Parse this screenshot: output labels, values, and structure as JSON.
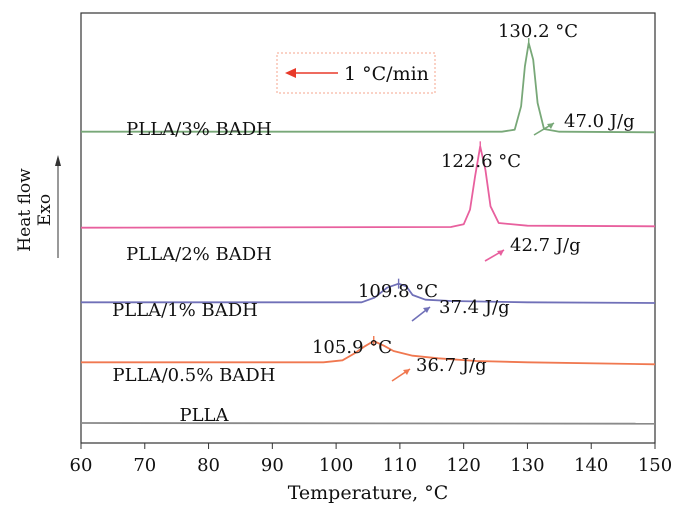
{
  "chart_data": {
    "type": "line",
    "xlabel": "Temperature, °C",
    "ylabel": "Heat flow",
    "ylabel_direction": "Exo",
    "xlim": [
      60,
      150
    ],
    "x_ticks": [
      "60",
      "70",
      "80",
      "90",
      "100",
      "110",
      "120",
      "130",
      "140",
      "150"
    ],
    "y_ticks_shown": false,
    "grid": false,
    "legend": null,
    "annotation_box": {
      "text": "1 °C/min",
      "arrow_direction": "left"
    },
    "series": [
      {
        "name": "PLLA",
        "color": "#8a8a8a",
        "baseline": 0.5,
        "peak": null,
        "points": [
          [
            60,
            0.5
          ],
          [
            150,
            0.4
          ]
        ]
      },
      {
        "name": "PLLA/0.5% BADH",
        "color": "#f07850",
        "baseline": 9.5,
        "peak": {
          "x": 105.9,
          "label": "105.9 °C",
          "enthalpy": "36.7 J/g"
        },
        "points": [
          [
            60,
            9.6
          ],
          [
            98,
            9.6
          ],
          [
            101,
            9.9
          ],
          [
            103,
            11.0
          ],
          [
            104.5,
            12.0
          ],
          [
            105.9,
            12.8
          ],
          [
            107.5,
            12.1
          ],
          [
            109,
            11.3
          ],
          [
            112,
            10.6
          ],
          [
            116,
            10.2
          ],
          [
            122,
            9.8
          ],
          [
            130,
            9.6
          ],
          [
            150,
            9.3
          ]
        ]
      },
      {
        "name": "PLLA/1% BADH",
        "color": "#7070b8",
        "baseline": 18.5,
        "peak": {
          "x": 109.8,
          "label": "109.8 °C",
          "enthalpy": "37.4 J/g"
        },
        "points": [
          [
            60,
            18.6
          ],
          [
            104,
            18.6
          ],
          [
            106,
            19.3
          ],
          [
            108,
            20.8
          ],
          [
            109.8,
            21.4
          ],
          [
            111,
            21.0
          ],
          [
            112,
            19.7
          ],
          [
            114,
            19.0
          ],
          [
            118,
            18.8
          ],
          [
            130,
            18.6
          ],
          [
            150,
            18.5
          ]
        ]
      },
      {
        "name": "PLLA/2% BADH",
        "color": "#e8609e",
        "baseline": 30,
        "peak": {
          "x": 122.6,
          "label": "122.6 °C",
          "enthalpy": "42.7 J/g"
        },
        "points": [
          [
            60,
            29.8
          ],
          [
            118,
            29.9
          ],
          [
            120,
            30.3
          ],
          [
            121,
            32.5
          ],
          [
            121.8,
            37.5
          ],
          [
            122.6,
            42.0
          ],
          [
            123.4,
            38.5
          ],
          [
            124.2,
            33.0
          ],
          [
            125.5,
            30.5
          ],
          [
            130,
            30.1
          ],
          [
            150,
            30.0
          ]
        ]
      },
      {
        "name": "PLLA/3% BADH",
        "color": "#78a878",
        "baseline": 44,
        "peak": {
          "x": 130.2,
          "label": "130.2 °C",
          "enthalpy": "47.0 J/g"
        },
        "points": [
          [
            60,
            44.2
          ],
          [
            126,
            44.2
          ],
          [
            128,
            44.5
          ],
          [
            129,
            48.0
          ],
          [
            129.6,
            54.0
          ],
          [
            130.2,
            57.5
          ],
          [
            130.9,
            55.0
          ],
          [
            131.6,
            48.5
          ],
          [
            132.6,
            44.6
          ],
          [
            135,
            44.2
          ],
          [
            150,
            44.1
          ]
        ]
      }
    ],
    "ylim": [
      -2.5,
      62
    ]
  }
}
